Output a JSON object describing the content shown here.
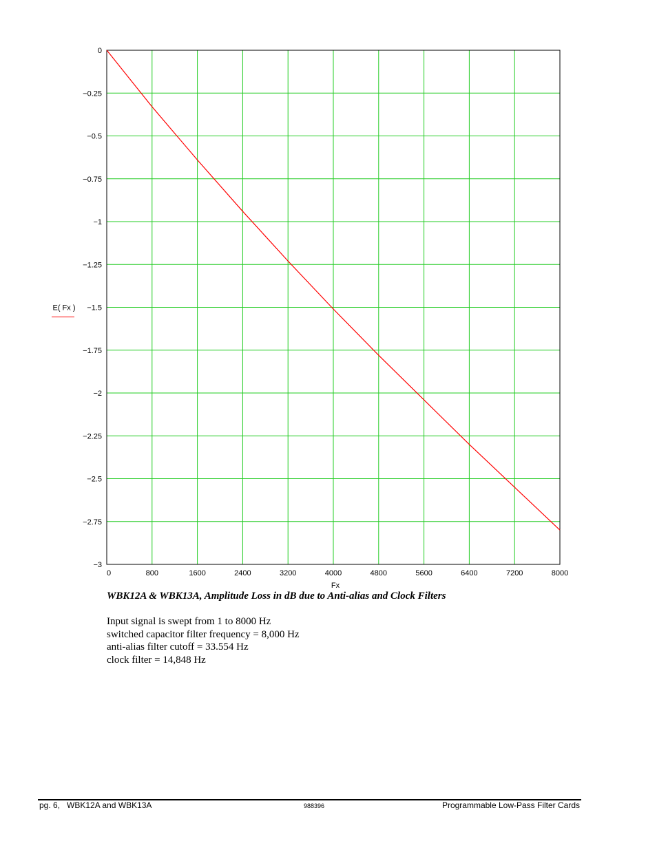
{
  "chart_data": {
    "type": "line",
    "x_label": "Fx",
    "y_label": "E( Fx )",
    "x_ticks": [
      0,
      800,
      1600,
      2400,
      3200,
      4000,
      4800,
      5600,
      6400,
      7200,
      8000
    ],
    "x_tick_labels": [
      "0",
      "800",
      "1600",
      "2400",
      "3200",
      "4000",
      "4800",
      "5600",
      "6400",
      "7200",
      "8000"
    ],
    "y_ticks": [
      0,
      -0.25,
      -0.5,
      -0.75,
      -1,
      -1.25,
      -1.5,
      -1.75,
      -2,
      -2.25,
      -2.5,
      -2.75,
      -3
    ],
    "y_tick_labels": [
      "0",
      "−0.25",
      "−0.5",
      "−0.75",
      "−1",
      "−1.25",
      "−1.5",
      "−1.75",
      "−2",
      "−2.25",
      "−2.5",
      "−2.75",
      "−3"
    ],
    "xlim": [
      0,
      8000
    ],
    "ylim": [
      -3,
      0
    ],
    "grid": true,
    "grid_color": "#22cc22",
    "series": [
      {
        "name": "E( Fx )",
        "color": "#ff0000",
        "x": [
          1,
          800,
          1600,
          2400,
          3200,
          4000,
          4800,
          5600,
          6400,
          7200,
          8000
        ],
        "y": [
          0,
          -0.33,
          -0.64,
          -0.94,
          -1.23,
          -1.51,
          -1.78,
          -2.04,
          -2.3,
          -2.55,
          -2.8
        ]
      }
    ]
  },
  "caption": "WBK12A & WBK13A, Amplitude Loss in dB due to Anti-alias and Clock Filters",
  "notes": [
    "Input signal is swept from 1 to 8000 Hz",
    "switched capacitor filter frequency = 8,000 Hz",
    "anti-alias filter cutoff = 33.554 Hz",
    "clock filter = 14,848 Hz"
  ],
  "footer": {
    "left": "pg. 6,   WBK12A and WBK13A",
    "center": "988396",
    "right": "Programmable Low-Pass Filter Cards"
  }
}
